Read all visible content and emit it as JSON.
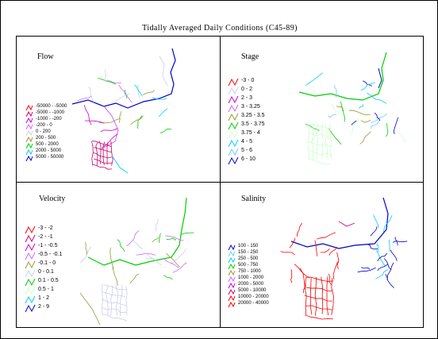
{
  "title": "Tidally Averaged Daily Conditions (C45-89)",
  "panels": {
    "flow": {
      "title": "Flow",
      "legend": [
        {
          "label": "-50000 - -5000",
          "color": "#ff0000"
        },
        {
          "label": "-5000 - -1000",
          "color": "#cc0066"
        },
        {
          "label": "-1000 - -200",
          "color": "#cc00cc"
        },
        {
          "label": "-200 - 0",
          "color": "#cc66ff"
        },
        {
          "label": "0 - 200",
          "color": "#ccccee"
        },
        {
          "label": "200 - 500",
          "color": "#999933"
        },
        {
          "label": "500 - 2000",
          "color": "#00cc00"
        },
        {
          "label": "2000 - 5000",
          "color": "#00ccff"
        },
        {
          "label": "5000 - 50000",
          "color": "#0000cc"
        }
      ]
    },
    "stage": {
      "title": "Stage",
      "legend": [
        {
          "label": "-3 - 0",
          "color": "#ff0000"
        },
        {
          "label": "0 - 2",
          "color": "#ccccee"
        },
        {
          "label": "2 - 3",
          "color": "#cc00cc"
        },
        {
          "label": "3 - 3.25",
          "color": "#cc66ff"
        },
        {
          "label": "3.25 - 3.5",
          "color": "#999933"
        },
        {
          "label": "3.5 - 3.75",
          "color": "#00cc00"
        },
        {
          "label": "3.75 - 4",
          "color": "#ccffcc"
        },
        {
          "label": "4 - 5",
          "color": "#00ccff"
        },
        {
          "label": "5 - 6",
          "color": "#66ccff"
        },
        {
          "label": "6 - 10",
          "color": "#0000cc"
        }
      ]
    },
    "velocity": {
      "title": "Velocity",
      "legend": [
        {
          "label": "-3 - -2",
          "color": "#ff0000"
        },
        {
          "label": "-2 - -1",
          "color": "#cc0066"
        },
        {
          "label": "-1 - -0.5",
          "color": "#cc00cc"
        },
        {
          "label": "-0.5 - -0.1",
          "color": "#cc66ff"
        },
        {
          "label": "-0.1 - 0",
          "color": "#999933"
        },
        {
          "label": "0 - 0.1",
          "color": "#ccccee"
        },
        {
          "label": "0.1 - 0.5",
          "color": "#00cc00"
        },
        {
          "label": "0.5 - 1",
          "color": "#ccffcc"
        },
        {
          "label": "1 - 2",
          "color": "#00ccff"
        },
        {
          "label": "2 - 9",
          "color": "#0000cc"
        }
      ]
    },
    "salinity": {
      "title": "Salinity",
      "legend": [
        {
          "label": "100 - 150",
          "color": "#0000cc"
        },
        {
          "label": "150 - 250",
          "color": "#66ccff"
        },
        {
          "label": "250 - 500",
          "color": "#00ccff"
        },
        {
          "label": "500 - 750",
          "color": "#00cc00"
        },
        {
          "label": "750 - 1000",
          "color": "#999933"
        },
        {
          "label": "1000 - 2000",
          "color": "#cc66ff"
        },
        {
          "label": "2000 - 5000",
          "color": "#cc00cc"
        },
        {
          "label": "5000 - 10000",
          "color": "#cc0066"
        },
        {
          "label": "10000 - 20000",
          "color": "#ff0000"
        },
        {
          "label": "20000 - 40000",
          "color": "#ee0000"
        }
      ]
    }
  }
}
